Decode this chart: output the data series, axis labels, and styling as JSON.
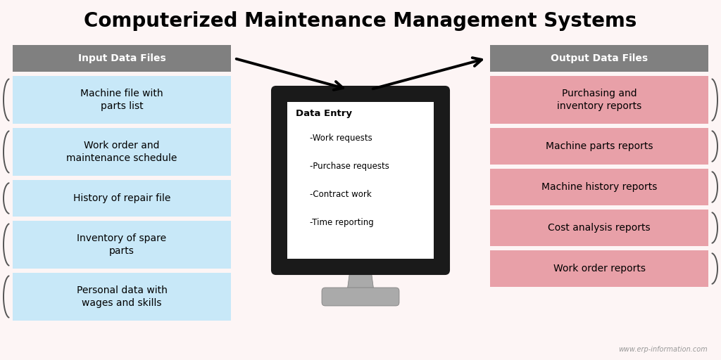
{
  "title": "Computerized Maintenance Management Systems",
  "title_fontsize": 20,
  "background_color": "#fdf5f5",
  "input_header": "Input Data Files",
  "output_header": "Output Data Files",
  "header_bg": "#808080",
  "header_fg": "#ffffff",
  "input_bg": "#c8e8f8",
  "output_bg": "#e8a0a8",
  "input_items": [
    "Machine file with\nparts list",
    "Work order and\nmaintenance schedule",
    "History of repair file",
    "Inventory of spare\nparts",
    "Personal data with\nwages and skills"
  ],
  "output_items": [
    "Purchasing and\ninventory reports",
    "Machine parts reports",
    "Machine history reports",
    "Cost analysis reports",
    "Work order reports"
  ],
  "center_title": "Data Entry",
  "center_items": [
    "-Work requests",
    "-Purchase requests",
    "-Contract work",
    "-Time reporting"
  ],
  "watermark": "www.erp-information.com"
}
